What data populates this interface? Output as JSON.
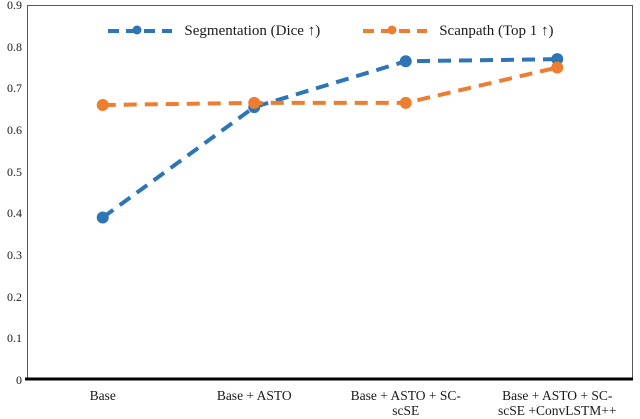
{
  "chart_data": {
    "type": "line",
    "title": "",
    "xlabel": "",
    "ylabel": "",
    "categories": [
      "Base",
      "Base + ASTO",
      "Base + ASTO + SC-scSE",
      "Base + ASTO + SC-scSE +ConvLSTM++"
    ],
    "categories_wrapped": [
      [
        "Base"
      ],
      [
        "Base + ASTO"
      ],
      [
        "Base + ASTO + SC-",
        "scSE"
      ],
      [
        "Base + ASTO + SC-",
        "scSE +ConvLSTM++"
      ]
    ],
    "series": [
      {
        "name": "Segmentation (Dice ↑)",
        "color": "#2E75B6",
        "values": [
          0.39,
          0.655,
          0.765,
          0.77
        ]
      },
      {
        "name": "Scanpath (Top 1 ↑)",
        "color": "#ED7D31",
        "values": [
          0.66,
          0.665,
          0.665,
          0.75
        ]
      }
    ],
    "ylim": [
      0,
      0.9
    ],
    "ytick_step": 0.1,
    "yticks": [
      "0",
      "0.1",
      "0.2",
      "0.3",
      "0.4",
      "0.5",
      "0.6",
      "0.7",
      "0.8",
      "0.9"
    ],
    "grid": false,
    "legend_position": "top-center",
    "line_style": "dashed",
    "marker": "circle",
    "axis_color": "#000000",
    "border_color": "#595959"
  }
}
